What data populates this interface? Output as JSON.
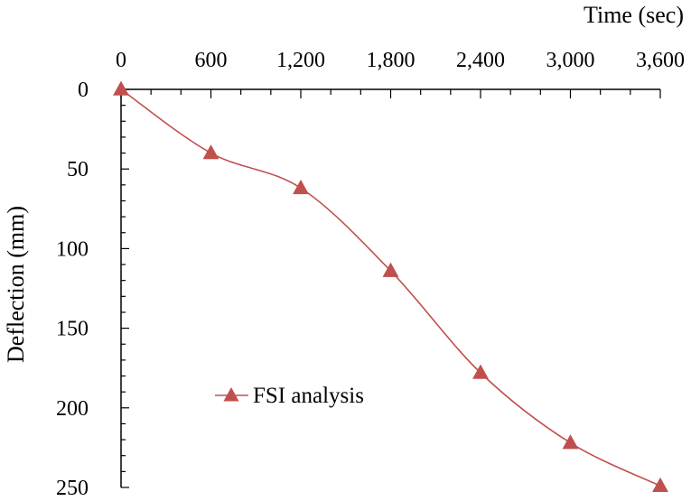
{
  "chart_data": {
    "type": "line",
    "xlabel": "Time (sec)",
    "ylabel": "Deflection (mm)",
    "x_axis_position": "top",
    "y_axis_inverted": true,
    "xlim": [
      0,
      3600
    ],
    "ylim": [
      0,
      250
    ],
    "x_ticks": [
      0,
      600,
      1200,
      1800,
      2400,
      3000,
      3600
    ],
    "x_tick_labels": [
      "0",
      "600",
      "1,200",
      "1,800",
      "2,400",
      "3,000",
      "3,600"
    ],
    "x_minor_step": 200,
    "y_ticks": [
      0,
      50,
      100,
      150,
      200,
      250
    ],
    "y_tick_labels": [
      "0",
      "50",
      "100",
      "150",
      "200",
      "250"
    ],
    "y_minor_step": 10,
    "grid": false,
    "legend_position": "center-left",
    "series": [
      {
        "name": "FSI analysis",
        "color": "#c0504d",
        "marker": "triangle",
        "line": "smooth",
        "x": [
          0,
          600,
          1200,
          1800,
          2400,
          3000,
          3600
        ],
        "y": [
          0,
          40,
          62,
          114,
          178,
          222,
          249
        ]
      }
    ]
  }
}
